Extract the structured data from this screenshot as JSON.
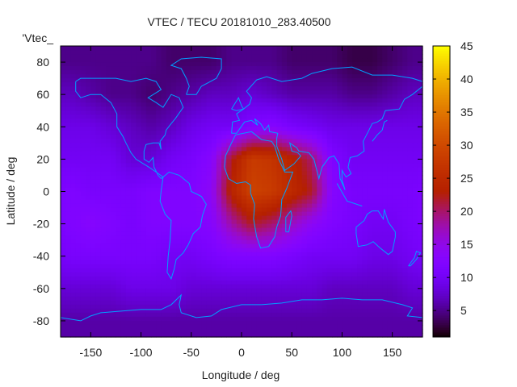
{
  "chart_data": {
    "type": "heatmap",
    "title": "VTEC / TECU 20181010_283.40500",
    "xlabel": "Longitude / deg",
    "ylabel": "Latitude / deg",
    "legend_label": "'Vtec_",
    "xlim": [
      -180,
      180
    ],
    "ylim": [
      -90,
      90
    ],
    "xticks": [
      -150,
      -100,
      -50,
      0,
      50,
      100,
      150
    ],
    "yticks": [
      -80,
      -60,
      -40,
      -20,
      0,
      20,
      40,
      60,
      80
    ],
    "cbrange": [
      1,
      45
    ],
    "cbticks": [
      5,
      10,
      15,
      20,
      25,
      30,
      35,
      40,
      45
    ],
    "palette": "rgbformulae 7,5,15",
    "coastline_color": "#00a0ff",
    "grid_lons": [
      -170,
      -150,
      -130,
      -110,
      -90,
      -70,
      -50,
      -30,
      -10,
      10,
      30,
      50,
      70,
      90,
      110,
      130,
      150,
      170
    ],
    "grid_lats": [
      80,
      60,
      40,
      20,
      0,
      -20,
      -40,
      -60,
      -80
    ],
    "values": [
      [
        5,
        5,
        5,
        5,
        5,
        4,
        4,
        4,
        5,
        5,
        5,
        4,
        4,
        4,
        3,
        3,
        4,
        5
      ],
      [
        7,
        6,
        5,
        5,
        4,
        5,
        6,
        7,
        7,
        8,
        7,
        6,
        6,
        6,
        5,
        5,
        6,
        7
      ],
      [
        9,
        9,
        8,
        7,
        6,
        7,
        9,
        10,
        10,
        12,
        13,
        11,
        10,
        9,
        9,
        9,
        9,
        9
      ],
      [
        10,
        10,
        10,
        8,
        8,
        10,
        11,
        13,
        22,
        28,
        27,
        24,
        20,
        12,
        10,
        10,
        10,
        10
      ],
      [
        12,
        11,
        11,
        11,
        12,
        12,
        12,
        14,
        24,
        29,
        28,
        25,
        22,
        13,
        11,
        11,
        11,
        11
      ],
      [
        12,
        13,
        12,
        11,
        12,
        12,
        12,
        13,
        18,
        22,
        20,
        17,
        14,
        12,
        11,
        10,
        10,
        11
      ],
      [
        11,
        11,
        11,
        11,
        11,
        10,
        10,
        11,
        12,
        12,
        12,
        11,
        10,
        10,
        10,
        9,
        9,
        10
      ],
      [
        8,
        8,
        8,
        9,
        9,
        9,
        8,
        8,
        8,
        8,
        8,
        8,
        8,
        7,
        7,
        7,
        7,
        8
      ],
      [
        6,
        6,
        6,
        6,
        6,
        6,
        6,
        6,
        6,
        6,
        6,
        6,
        6,
        6,
        6,
        6,
        6,
        6
      ]
    ],
    "coastlines": [
      [
        [
          -165,
          68
        ],
        [
          -160,
          70
        ],
        [
          -140,
          70
        ],
        [
          -125,
          70
        ],
        [
          -110,
          68
        ],
        [
          -95,
          70
        ],
        [
          -85,
          68
        ],
        [
          -80,
          63
        ],
        [
          -93,
          58
        ],
        [
          -85,
          55
        ],
        [
          -78,
          52
        ],
        [
          -70,
          60
        ],
        [
          -62,
          58
        ],
        [
          -58,
          52
        ],
        [
          -66,
          45
        ],
        [
          -70,
          42
        ],
        [
          -75,
          38
        ],
        [
          -76,
          35
        ],
        [
          -81,
          31
        ],
        [
          -80,
          26
        ],
        [
          -82,
          30
        ],
        [
          -88,
          30
        ],
        [
          -95,
          29
        ],
        [
          -97,
          25
        ],
        [
          -97,
          20
        ],
        [
          -92,
          18
        ],
        [
          -88,
          21
        ],
        [
          -87,
          15
        ],
        [
          -83,
          10
        ],
        [
          -80,
          8
        ],
        [
          -78,
          9
        ],
        [
          -85,
          12
        ],
        [
          -92,
          15
        ],
        [
          -105,
          20
        ],
        [
          -110,
          24
        ],
        [
          -115,
          30
        ],
        [
          -118,
          34
        ],
        [
          -124,
          40
        ],
        [
          -124,
          48
        ],
        [
          -130,
          55
        ],
        [
          -140,
          60
        ],
        [
          -150,
          60
        ],
        [
          -160,
          58
        ],
        [
          -165,
          62
        ],
        [
          -165,
          68
        ]
      ],
      [
        [
          -78,
          9
        ],
        [
          -72,
          12
        ],
        [
          -62,
          10
        ],
        [
          -52,
          5
        ],
        [
          -50,
          0
        ],
        [
          -40,
          -3
        ],
        [
          -35,
          -8
        ],
        [
          -39,
          -15
        ],
        [
          -41,
          -22
        ],
        [
          -48,
          -26
        ],
        [
          -53,
          -33
        ],
        [
          -58,
          -38
        ],
        [
          -65,
          -42
        ],
        [
          -67,
          -48
        ],
        [
          -70,
          -54
        ],
        [
          -74,
          -50
        ],
        [
          -73,
          -40
        ],
        [
          -71,
          -30
        ],
        [
          -70,
          -18
        ],
        [
          -76,
          -14
        ],
        [
          -81,
          -6
        ],
        [
          -80,
          0
        ],
        [
          -78,
          9
        ]
      ],
      [
        [
          -17,
          15
        ],
        [
          -16,
          22
        ],
        [
          -10,
          30
        ],
        [
          -6,
          35
        ],
        [
          10,
          37
        ],
        [
          20,
          32
        ],
        [
          30,
          31
        ],
        [
          33,
          28
        ],
        [
          37,
          20
        ],
        [
          43,
          12
        ],
        [
          51,
          12
        ],
        [
          45,
          2
        ],
        [
          40,
          -5
        ],
        [
          39,
          -15
        ],
        [
          35,
          -22
        ],
        [
          33,
          -28
        ],
        [
          27,
          -34
        ],
        [
          19,
          -35
        ],
        [
          15,
          -28
        ],
        [
          12,
          -17
        ],
        [
          13,
          -8
        ],
        [
          9,
          -1
        ],
        [
          9,
          4
        ],
        [
          4,
          6
        ],
        [
          -5,
          5
        ],
        [
          -13,
          8
        ],
        [
          -17,
          15
        ]
      ],
      [
        [
          -10,
          36
        ],
        [
          -9,
          43
        ],
        [
          -2,
          44
        ],
        [
          -5,
          48
        ],
        [
          2,
          51
        ],
        [
          8,
          54
        ],
        [
          10,
          58
        ],
        [
          5,
          62
        ],
        [
          15,
          69
        ],
        [
          25,
          71
        ],
        [
          40,
          68
        ],
        [
          60,
          70
        ],
        [
          70,
          73
        ],
        [
          90,
          76
        ],
        [
          110,
          77
        ],
        [
          130,
          72
        ],
        [
          150,
          72
        ],
        [
          170,
          70
        ],
        [
          180,
          68
        ]
      ],
      [
        [
          180,
          65
        ],
        [
          170,
          60
        ],
        [
          162,
          57
        ],
        [
          157,
          51
        ],
        [
          143,
          50
        ],
        [
          140,
          45
        ],
        [
          135,
          43
        ],
        [
          130,
          42
        ],
        [
          126,
          37
        ],
        [
          121,
          31
        ],
        [
          122,
          25
        ],
        [
          115,
          22
        ],
        [
          108,
          21
        ],
        [
          106,
          15
        ],
        [
          109,
          11
        ],
        [
          104,
          9
        ],
        [
          100,
          13
        ],
        [
          100,
          7
        ],
        [
          103,
          1
        ],
        [
          98,
          8
        ],
        [
          97,
          17
        ],
        [
          92,
          22
        ],
        [
          87,
          21
        ],
        [
          80,
          15
        ],
        [
          77,
          8
        ],
        [
          72,
          20
        ],
        [
          67,
          24
        ],
        [
          57,
          25
        ],
        [
          55,
          27
        ],
        [
          48,
          30
        ],
        [
          50,
          25
        ],
        [
          56,
          24
        ],
        [
          59,
          22
        ],
        [
          52,
          17
        ],
        [
          43,
          13
        ],
        [
          40,
          20
        ],
        [
          35,
          28
        ],
        [
          35,
          33
        ],
        [
          36,
          36
        ],
        [
          28,
          37
        ],
        [
          27,
          41
        ],
        [
          23,
          38
        ],
        [
          19,
          42
        ],
        [
          13,
          45
        ],
        [
          16,
          41
        ],
        [
          10,
          44
        ],
        [
          3,
          43
        ],
        [
          -5,
          36
        ],
        [
          -10,
          36
        ]
      ],
      [
        [
          114,
          -22
        ],
        [
          114,
          -26
        ],
        [
          116,
          -34
        ],
        [
          125,
          -33
        ],
        [
          131,
          -31
        ],
        [
          138,
          -35
        ],
        [
          146,
          -39
        ],
        [
          150,
          -37
        ],
        [
          153,
          -28
        ],
        [
          153,
          -25
        ],
        [
          146,
          -19
        ],
        [
          142,
          -11
        ],
        [
          141,
          -17
        ],
        [
          136,
          -12
        ],
        [
          130,
          -12
        ],
        [
          125,
          -14
        ],
        [
          122,
          -18
        ],
        [
          114,
          -22
        ]
      ],
      [
        [
          -180,
          -78
        ],
        [
          -160,
          -80
        ],
        [
          -150,
          -77
        ],
        [
          -140,
          -75
        ],
        [
          -120,
          -74
        ],
        [
          -100,
          -73
        ],
        [
          -80,
          -73
        ],
        [
          -70,
          -70
        ],
        [
          -60,
          -64
        ],
        [
          -62,
          -70
        ],
        [
          -60,
          -75
        ],
        [
          -45,
          -78
        ],
        [
          -30,
          -77
        ],
        [
          -20,
          -73
        ],
        [
          0,
          -70
        ],
        [
          20,
          -70
        ],
        [
          40,
          -69
        ],
        [
          60,
          -67
        ],
        [
          80,
          -67
        ],
        [
          100,
          -66
        ],
        [
          120,
          -67
        ],
        [
          140,
          -67
        ],
        [
          160,
          -70
        ],
        [
          170,
          -72
        ],
        [
          165,
          -77
        ],
        [
          180,
          -78
        ]
      ],
      [
        [
          -55,
          60
        ],
        [
          -45,
          60
        ],
        [
          -40,
          65
        ],
        [
          -25,
          70
        ],
        [
          -20,
          76
        ],
        [
          -20,
          82
        ],
        [
          -40,
          83
        ],
        [
          -60,
          82
        ],
        [
          -70,
          78
        ],
        [
          -60,
          76
        ],
        [
          -55,
          70
        ],
        [
          -52,
          65
        ],
        [
          -55,
          60
        ]
      ],
      [
        [
          -10,
          51
        ],
        [
          -6,
          55
        ],
        [
          -3,
          58
        ],
        [
          0,
          53
        ],
        [
          2,
          51
        ],
        [
          -5,
          50
        ],
        [
          -10,
          51
        ]
      ],
      [
        [
          95,
          5
        ],
        [
          105,
          -6
        ],
        [
          115,
          -8
        ],
        [
          120,
          -9
        ]
      ],
      [
        [
          130,
          31
        ],
        [
          135,
          35
        ],
        [
          140,
          38
        ],
        [
          142,
          43
        ],
        [
          145,
          44
        ]
      ],
      [
        [
          44,
          -25
        ],
        [
          47,
          -25
        ],
        [
          50,
          -15
        ],
        [
          49,
          -12
        ],
        [
          44,
          -16
        ],
        [
          44,
          -25
        ]
      ],
      [
        [
          166,
          -46
        ],
        [
          172,
          -41
        ],
        [
          174,
          -37
        ],
        [
          178,
          -38
        ],
        [
          174,
          -42
        ],
        [
          168,
          -46
        ],
        [
          166,
          -46
        ]
      ]
    ]
  }
}
